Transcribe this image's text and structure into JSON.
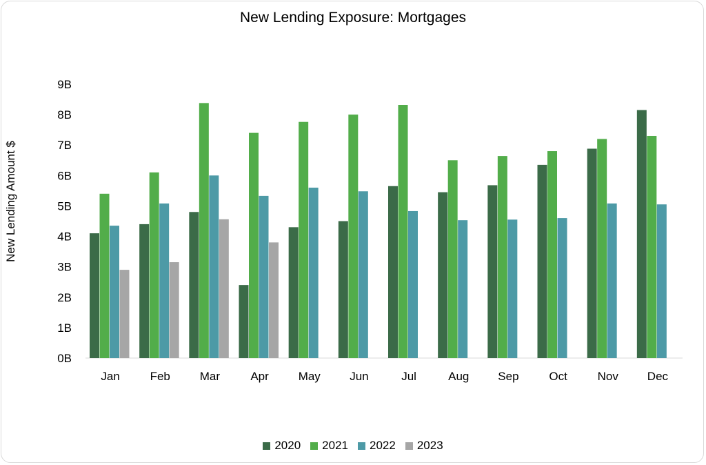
{
  "chart_data": {
    "type": "bar",
    "title": "New Lending Exposure: Mortgages",
    "xlabel": "",
    "ylabel": "New Lending Amount $",
    "ylim": [
      0,
      9
    ],
    "yticks": [
      "0B",
      "1B",
      "2B",
      "3B",
      "4B",
      "5B",
      "6B",
      "7B",
      "8B",
      "9B"
    ],
    "grid": false,
    "legend_position": "bottom",
    "categories": [
      "Jan",
      "Feb",
      "Mar",
      "Apr",
      "May",
      "Jun",
      "Jul",
      "Aug",
      "Sep",
      "Oct",
      "Nov",
      "Dec"
    ],
    "series": [
      {
        "name": "2020",
        "color": "#3b6b48",
        "values": [
          4.1,
          4.4,
          4.8,
          2.4,
          4.3,
          4.5,
          5.65,
          5.45,
          5.68,
          6.35,
          6.88,
          8.15
        ]
      },
      {
        "name": "2021",
        "color": "#52ad4a",
        "values": [
          5.4,
          6.1,
          8.38,
          7.4,
          7.76,
          8.0,
          8.32,
          6.5,
          6.64,
          6.8,
          7.2,
          7.3
        ]
      },
      {
        "name": "2022",
        "color": "#4d9aa6",
        "values": [
          4.35,
          5.08,
          6.0,
          5.33,
          5.6,
          5.48,
          4.83,
          4.53,
          4.55,
          4.6,
          5.08,
          5.05
        ]
      },
      {
        "name": "2023",
        "color": "#a6a6a6",
        "values": [
          2.9,
          3.15,
          4.56,
          3.8,
          null,
          null,
          null,
          null,
          null,
          null,
          null,
          null
        ]
      }
    ]
  }
}
